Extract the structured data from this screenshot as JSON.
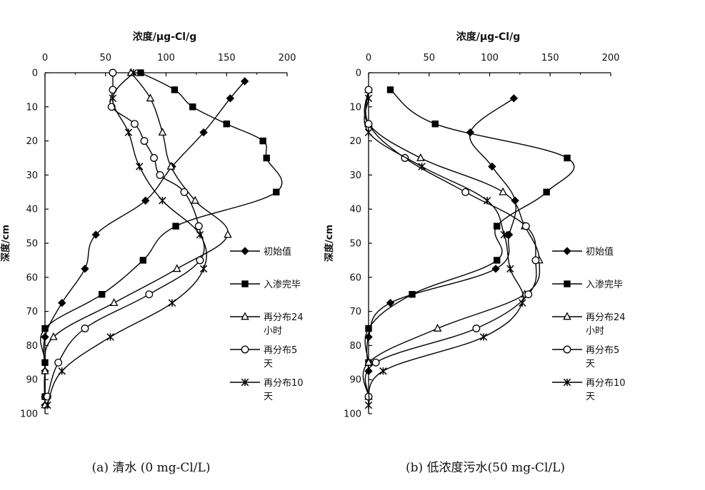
{
  "legend_names": [
    "初始值",
    "入渗完毕",
    "再分布24\n小时",
    "再分布5\n天",
    "再分布10\n天"
  ],
  "chart_data": [
    {
      "type": "line",
      "title": "浓度/μg-Cl/g",
      "ylabel": "深度/cm",
      "caption": "(a)  清水  (0 mg-Cl/L)",
      "xlim": [
        0,
        200
      ],
      "ylim": [
        0,
        100
      ],
      "xticks": [
        "0",
        "50",
        "100",
        "150",
        "200"
      ],
      "yticks": [
        "0",
        "10",
        "20",
        "30",
        "40",
        "50",
        "60",
        "70",
        "80",
        "90",
        "100"
      ],
      "series": [
        {
          "name": "初始值",
          "marker": "diamond",
          "points": [
            [
              165,
              2.5
            ],
            [
              153,
              7.5
            ],
            [
              131,
              17.5
            ],
            [
              105,
              27.5
            ],
            [
              83,
              37.5
            ],
            [
              42,
              47.5
            ],
            [
              33,
              57.5
            ],
            [
              14,
              67.5
            ],
            [
              0,
              77.5
            ],
            [
              0,
              87.5
            ],
            [
              0,
              95
            ],
            [
              0,
              97.5
            ]
          ]
        },
        {
          "name": "入渗完毕",
          "marker": "square",
          "points": [
            [
              79,
              0
            ],
            [
              107,
              5
            ],
            [
              122,
              10
            ],
            [
              150,
              15
            ],
            [
              180,
              20
            ],
            [
              183,
              25
            ],
            [
              191,
              35
            ],
            [
              108,
              45
            ],
            [
              81,
              55
            ],
            [
              47,
              65
            ],
            [
              0,
              75
            ],
            [
              0,
              85
            ],
            [
              0,
              95
            ]
          ]
        },
        {
          "name": "再分布24小时",
          "marker": "triangle",
          "points": [
            [
              71,
              0
            ],
            [
              87,
              7.5
            ],
            [
              97,
              17.5
            ],
            [
              104,
              27.5
            ],
            [
              124,
              37.5
            ],
            [
              151,
              47.5
            ],
            [
              109,
              57.5
            ],
            [
              57,
              67.5
            ],
            [
              7,
              77.5
            ],
            [
              0,
              87.5
            ],
            [
              0,
              97.5
            ]
          ]
        },
        {
          "name": "再分布5天",
          "marker": "circle",
          "points": [
            [
              56,
              0
            ],
            [
              56,
              5
            ],
            [
              55,
              10
            ],
            [
              74,
              15
            ],
            [
              82,
              20
            ],
            [
              90,
              25
            ],
            [
              95,
              30
            ],
            [
              115,
              35
            ],
            [
              127,
              45
            ],
            [
              128,
              55
            ],
            [
              86,
              65
            ],
            [
              33,
              75
            ],
            [
              11,
              85
            ],
            [
              2,
              95
            ]
          ]
        },
        {
          "name": "再分布10天",
          "marker": "star",
          "points": [
            [
              73,
              0
            ],
            [
              56,
              7.5
            ],
            [
              69,
              17.5
            ],
            [
              78,
              27.5
            ],
            [
              97,
              37.5
            ],
            [
              128,
              47.5
            ],
            [
              131,
              57.5
            ],
            [
              105,
              67.5
            ],
            [
              54,
              77.5
            ],
            [
              14,
              87.5
            ],
            [
              2,
              97.5
            ]
          ]
        }
      ]
    },
    {
      "type": "line",
      "title": "浓度/μg-Cl/g",
      "ylabel": "深度/cm",
      "caption": "(b)  低浓度污水(50 mg-Cl/L)",
      "xlim": [
        0,
        200
      ],
      "ylim": [
        0,
        100
      ],
      "xticks": [
        "0",
        "50",
        "100",
        "150",
        "200"
      ],
      "yticks": [
        "0",
        "10",
        "20",
        "30",
        "40",
        "50",
        "60",
        "70",
        "80",
        "90",
        "100"
      ],
      "series": [
        {
          "name": "初始值",
          "marker": "diamond",
          "points": [
            [
              120,
              7.5
            ],
            [
              84,
              17.5
            ],
            [
              102,
              27.5
            ],
            [
              121,
              37.5
            ],
            [
              116,
              47.5
            ],
            [
              105,
              57.5
            ],
            [
              18,
              67.5
            ],
            [
              0,
              77.5
            ],
            [
              0,
              87.5
            ]
          ]
        },
        {
          "name": "入渗完毕",
          "marker": "square",
          "points": [
            [
              18,
              5
            ],
            [
              55,
              15
            ],
            [
              164,
              25
            ],
            [
              147,
              35
            ],
            [
              106,
              45
            ],
            [
              106,
              55
            ],
            [
              36,
              65
            ],
            [
              0,
              75
            ],
            [
              0,
              85
            ]
          ]
        },
        {
          "name": "再分布24小时",
          "marker": "triangle",
          "points": [
            [
              0,
              5
            ],
            [
              0,
              15
            ],
            [
              43,
              25
            ],
            [
              111,
              35
            ],
            [
              129,
              45
            ],
            [
              141,
              55
            ],
            [
              129,
              65
            ],
            [
              57,
              75
            ],
            [
              0,
              85
            ],
            [
              0,
              95
            ]
          ]
        },
        {
          "name": "再分布5天",
          "marker": "circle",
          "points": [
            [
              0,
              5
            ],
            [
              0,
              15
            ],
            [
              30,
              25
            ],
            [
              80,
              35
            ],
            [
              130,
              45
            ],
            [
              138,
              55
            ],
            [
              132,
              65
            ],
            [
              89,
              75
            ],
            [
              6,
              85
            ],
            [
              0,
              95
            ]
          ]
        },
        {
          "name": "再分布10天",
          "marker": "star",
          "points": [
            [
              0,
              7.5
            ],
            [
              0,
              17.5
            ],
            [
              44,
              27.5
            ],
            [
              98,
              37.5
            ],
            [
              112,
              47.5
            ],
            [
              117,
              57.5
            ],
            [
              127,
              67.5
            ],
            [
              95,
              77.5
            ],
            [
              12,
              87.5
            ],
            [
              0,
              97.5
            ]
          ]
        }
      ]
    }
  ]
}
